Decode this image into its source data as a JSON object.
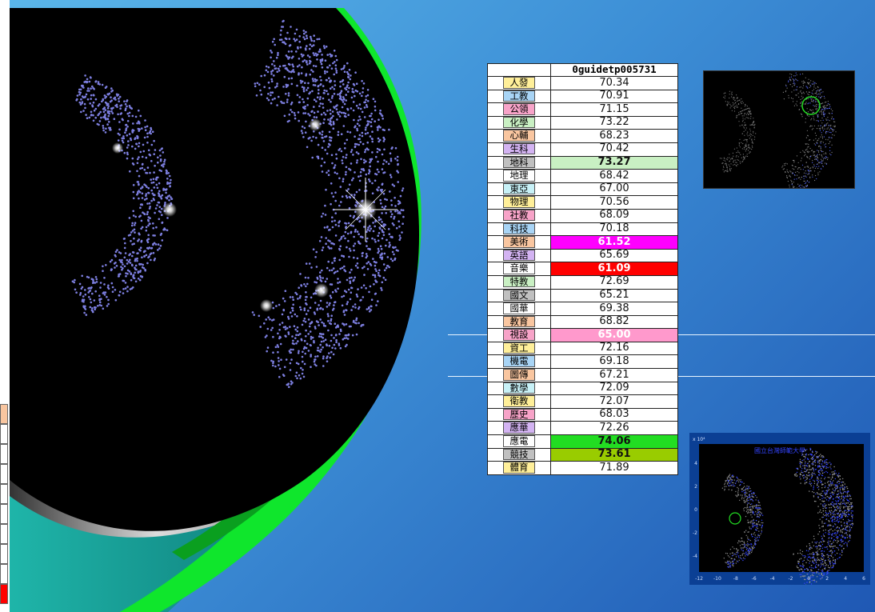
{
  "table": {
    "header": "0guidetp005731",
    "rows": [
      {
        "label": "人發",
        "value": "70.34",
        "tag": "#ffef99",
        "bg": "#ffffff",
        "fg": "#111111",
        "bold": false
      },
      {
        "label": "工教",
        "value": "70.91",
        "tag": "#a8d4f5",
        "bg": "#ffffff",
        "fg": "#111111",
        "bold": false
      },
      {
        "label": "公領",
        "value": "71.15",
        "tag": "#f7a3c8",
        "bg": "#ffffff",
        "fg": "#111111",
        "bold": false
      },
      {
        "label": "化學",
        "value": "73.22",
        "tag": "#c9f0c3",
        "bg": "#ffffff",
        "fg": "#111111",
        "bold": false
      },
      {
        "label": "心輔",
        "value": "68.23",
        "tag": "#f9c6a0",
        "bg": "#ffffff",
        "fg": "#111111",
        "bold": false
      },
      {
        "label": "生科",
        "value": "70.42",
        "tag": "#d3b3f2",
        "bg": "#ffffff",
        "fg": "#111111",
        "bold": false
      },
      {
        "label": "地科",
        "value": "73.27",
        "tag": "#c0c0c0",
        "bg": "#c9f0c3",
        "fg": "#111111",
        "bold": true
      },
      {
        "label": "地理",
        "value": "68.42",
        "tag": "#ffffff",
        "bg": "#ffffff",
        "fg": "#111111",
        "bold": false
      },
      {
        "label": "東亞",
        "value": "67.00",
        "tag": "#c7f1f7",
        "bg": "#ffffff",
        "fg": "#111111",
        "bold": false
      },
      {
        "label": "物理",
        "value": "70.56",
        "tag": "#ffef99",
        "bg": "#ffffff",
        "fg": "#111111",
        "bold": false
      },
      {
        "label": "社教",
        "value": "68.09",
        "tag": "#f7a3c8",
        "bg": "#ffffff",
        "fg": "#111111",
        "bold": false
      },
      {
        "label": "科技",
        "value": "70.18",
        "tag": "#a8d4f5",
        "bg": "#ffffff",
        "fg": "#111111",
        "bold": false
      },
      {
        "label": "美術",
        "value": "61.52",
        "tag": "#f9c6a0",
        "bg": "#ff00ff",
        "fg": "#ffffff",
        "bold": true
      },
      {
        "label": "英語",
        "value": "65.69",
        "tag": "#d3b3f2",
        "bg": "#ffffff",
        "fg": "#111111",
        "bold": false
      },
      {
        "label": "音樂",
        "value": "61.09",
        "tag": "#ffffff",
        "bg": "#ff0000",
        "fg": "#ffffff",
        "bold": true
      },
      {
        "label": "特教",
        "value": "72.69",
        "tag": "#c9f0c3",
        "bg": "#ffffff",
        "fg": "#111111",
        "bold": false
      },
      {
        "label": "國文",
        "value": "65.21",
        "tag": "#c0c0c0",
        "bg": "#ffffff",
        "fg": "#111111",
        "bold": false
      },
      {
        "label": "國華",
        "value": "69.38",
        "tag": "#ffffff",
        "bg": "#ffffff",
        "fg": "#111111",
        "bold": false
      },
      {
        "label": "教育",
        "value": "68.82",
        "tag": "#f9c6a0",
        "bg": "#ffffff",
        "fg": "#111111",
        "bold": false
      },
      {
        "label": "視設",
        "value": "65.00",
        "tag": "#f7a3c8",
        "bg": "#ff99cc",
        "fg": "#ffffff",
        "bold": true
      },
      {
        "label": "資工",
        "value": "72.16",
        "tag": "#ffef99",
        "bg": "#ffffff",
        "fg": "#111111",
        "bold": false
      },
      {
        "label": "機電",
        "value": "69.18",
        "tag": "#a8d4f5",
        "bg": "#ffffff",
        "fg": "#111111",
        "bold": false
      },
      {
        "label": "圖傳",
        "value": "67.21",
        "tag": "#f9c6a0",
        "bg": "#ffffff",
        "fg": "#111111",
        "bold": false
      },
      {
        "label": "數學",
        "value": "72.09",
        "tag": "#c7f1f7",
        "bg": "#ffffff",
        "fg": "#111111",
        "bold": false
      },
      {
        "label": "衛教",
        "value": "72.07",
        "tag": "#ffef99",
        "bg": "#ffffff",
        "fg": "#111111",
        "bold": false
      },
      {
        "label": "歷史",
        "value": "68.03",
        "tag": "#f7a3c8",
        "bg": "#ffffff",
        "fg": "#111111",
        "bold": false
      },
      {
        "label": "應華",
        "value": "72.26",
        "tag": "#d3b3f2",
        "bg": "#ffffff",
        "fg": "#111111",
        "bold": false
      },
      {
        "label": "應電",
        "value": "74.06",
        "tag": "#ffffff",
        "bg": "#22dd22",
        "fg": "#111111",
        "bold": true
      },
      {
        "label": "競技",
        "value": "73.61",
        "tag": "#c0c0c0",
        "bg": "#99cc00",
        "fg": "#111111",
        "bold": true
      },
      {
        "label": "體育",
        "value": "71.89",
        "tag": "#ffef99",
        "bg": "#ffffff",
        "fg": "#111111",
        "bold": false
      }
    ]
  },
  "chart_data": {
    "type": "table",
    "header": "0guidetp005731",
    "categories": [
      "人發",
      "工教",
      "公領",
      "化學",
      "心輔",
      "生科",
      "地科",
      "地理",
      "東亞",
      "物理",
      "社教",
      "科技",
      "美術",
      "英語",
      "音樂",
      "特教",
      "國文",
      "國華",
      "教育",
      "視設",
      "資工",
      "機電",
      "圖傳",
      "數學",
      "衛教",
      "歷史",
      "應華",
      "應電",
      "競技",
      "體育"
    ],
    "values": [
      70.34,
      70.91,
      71.15,
      73.22,
      68.23,
      70.42,
      73.27,
      68.42,
      67.0,
      70.56,
      68.09,
      70.18,
      61.52,
      65.69,
      61.09,
      72.69,
      65.21,
      69.38,
      68.82,
      65.0,
      72.16,
      69.18,
      67.21,
      72.09,
      72.07,
      68.03,
      72.26,
      74.06,
      73.61,
      71.89
    ]
  },
  "thumb2": {
    "title": "國立台灣師範大學",
    "exponent": "x 10⁴",
    "xticks": [
      "-12",
      "-10",
      "-8",
      "-6",
      "-4",
      "-2",
      "0",
      "2",
      "4",
      "6"
    ],
    "yticks": [
      "4",
      "2",
      "0",
      "-2",
      "-4"
    ]
  },
  "colors": {
    "scatter": "#7d7fe0",
    "highlight_circle": "#22dd22",
    "thumb_points": "#3344ff"
  }
}
